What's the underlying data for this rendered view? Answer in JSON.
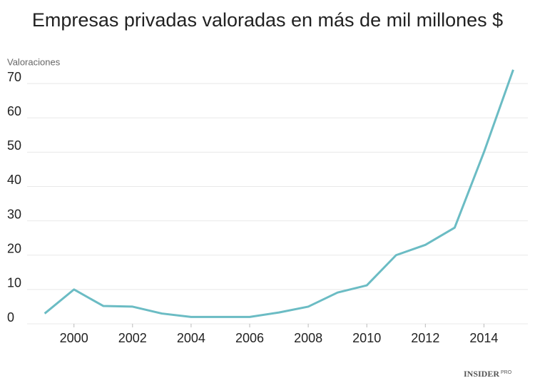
{
  "chart_data": {
    "type": "line",
    "title": "Empresas privadas valoradas en más de mil millones $",
    "y_label": "Valoraciones",
    "brand": "INSIDER",
    "brand_sub": "PRO",
    "x": [
      1999,
      2000,
      2001,
      2002,
      2003,
      2004,
      2005,
      2006,
      2007,
      2008,
      2009,
      2010,
      2011,
      2012,
      2013,
      2014,
      2015
    ],
    "series": [
      {
        "name": "Valoraciones",
        "color": "#6bbcc4",
        "values": [
          3,
          10,
          5.2,
          5,
          3,
          2,
          2,
          2,
          3.3,
          5,
          9.1,
          11.2,
          20,
          23,
          28,
          50,
          74
        ]
      }
    ],
    "xlim": [
      1998.4,
      2015.5
    ],
    "xticks": [
      2000,
      2002,
      2004,
      2006,
      2008,
      2010,
      2012,
      2014
    ],
    "ylim": [
      0,
      75
    ],
    "yticks": [
      0,
      10,
      20,
      30,
      40,
      50,
      60,
      70
    ],
    "grid": true
  }
}
